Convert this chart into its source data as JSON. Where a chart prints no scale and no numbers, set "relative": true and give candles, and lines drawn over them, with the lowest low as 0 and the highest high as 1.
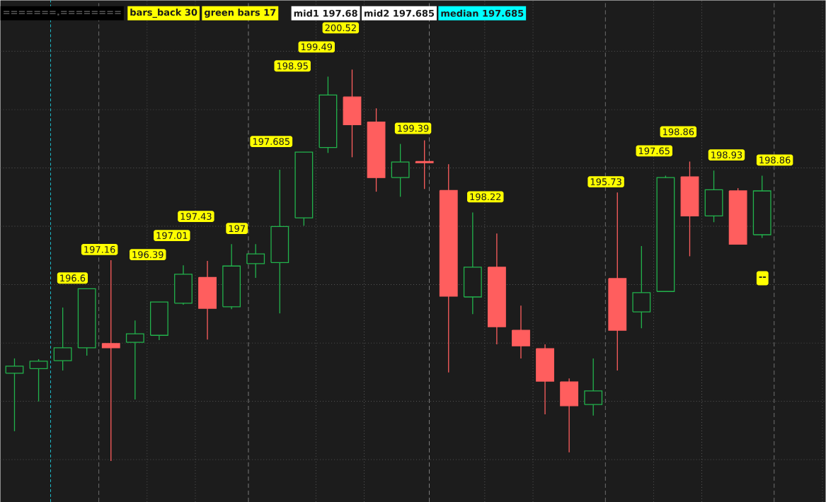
{
  "chart_data": {
    "type": "candlestick",
    "relative": true,
    "grid": true,
    "categories": [
      null,
      null,
      null,
      null,
      null,
      null,
      null,
      null,
      null,
      null,
      null,
      null,
      null,
      null,
      null,
      null,
      null,
      null,
      null,
      null,
      null,
      null,
      null,
      null,
      null,
      null,
      null,
      null,
      null,
      null,
      null,
      null
    ],
    "ohlc": [
      [
        0.224,
        0.262,
        0.076,
        0.242
      ],
      [
        0.236,
        0.26,
        0.152,
        0.255
      ],
      [
        0.256,
        0.392,
        0.231,
        0.289
      ],
      [
        0.289,
        0.44,
        0.269,
        0.44
      ],
      [
        0.3,
        0.513,
        0,
        0.289
      ],
      [
        0.303,
        0.359,
        0.157,
        0.325
      ],
      [
        0.321,
        0.406,
        0.309,
        0.406
      ],
      [
        0.403,
        0.5,
        0.399,
        0.477
      ],
      [
        0.469,
        0.511,
        0.31,
        0.39
      ],
      [
        0.394,
        0.554,
        0.388,
        0.498
      ],
      [
        0.504,
        0.554,
        0.468,
        0.529
      ],
      [
        0.507,
        0.744,
        0.377,
        0.599
      ],
      [
        0.621,
        0.789,
        0.601,
        0.789
      ],
      [
        0.801,
        0.982,
        0.787,
        0.935
      ],
      [
        0.93,
        1,
        0.776,
        0.859
      ],
      [
        0.866,
        0.901,
        0.688,
        0.724
      ],
      [
        0.724,
        0.81,
        0.675,
        0.764
      ],
      [
        0.765,
        0.819,
        0.695,
        0.762
      ],
      [
        0.691,
        0.758,
        0.226,
        0.421
      ],
      [
        0.419,
        0.635,
        0.375,
        0.495
      ],
      [
        0.495,
        0.581,
        0.298,
        0.343
      ],
      [
        0.334,
        0.397,
        0.262,
        0.294
      ],
      [
        0.287,
        0.298,
        0.119,
        0.204
      ],
      [
        0.202,
        0.211,
        0.022,
        0.141
      ],
      [
        0.144,
        0.262,
        0.116,
        0.179
      ],
      [
        0.466,
        0.686,
        0.231,
        0.334
      ],
      [
        0.381,
        0.549,
        0.339,
        0.43
      ],
      [
        0.433,
        0.729,
        0.433,
        0.724
      ],
      [
        0.726,
        0.765,
        0.523,
        0.626
      ],
      [
        0.626,
        0.742,
        0.61,
        0.693
      ],
      [
        0.69,
        0.697,
        0.554,
        0.554
      ],
      [
        0.578,
        0.729,
        0.57,
        0.69
      ]
    ],
    "colors": [
      "#22b34c",
      "#22b34c",
      "#22b34c",
      "#22b34c",
      "#ff5e5e",
      "#22b34c",
      "#22b34c",
      "#22b34c",
      "#ff5e5e",
      "#22b34c",
      "#22b34c",
      "#22b34c",
      "#22b34c",
      "#22b34c",
      "#ff5e5e",
      "#ff5e5e",
      "#22b34c",
      "#ff5e5e",
      "#ff5e5e",
      "#22b34c",
      "#ff5e5e",
      "#ff5e5e",
      "#ff5e5e",
      "#ff5e5e",
      "#22b34c",
      "#ff5e5e",
      "#22b34c",
      "#22b34c",
      "#ff5e5e",
      "#22b34c",
      "#ff5e5e",
      "#22b34c"
    ],
    "value_labels": [
      null,
      null,
      "196.6",
      "197.16",
      null,
      "196.39",
      "197.01",
      "197.43",
      null,
      "197",
      "197.685",
      "198.95",
      "199.49",
      "200.52",
      null,
      null,
      "199.39",
      null,
      null,
      "198.22",
      null,
      null,
      null,
      null,
      "195.73",
      null,
      "197.65",
      "198.86",
      null,
      "198.93",
      null,
      "198.86"
    ],
    "annotations": [
      "=======.========",
      "bars_back 30",
      "green bars 17",
      "mid1 197.68",
      "mid2 197.685",
      "median 197.685",
      {
        "text": "--",
        "y": 0.467
      }
    ]
  }
}
